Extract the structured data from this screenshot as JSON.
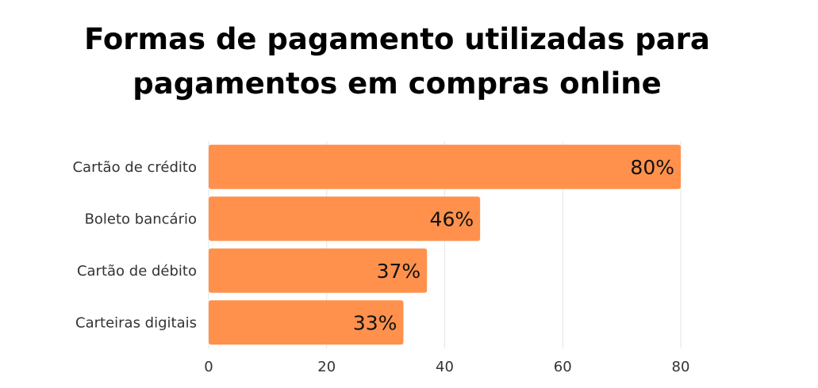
{
  "chart_data": {
    "type": "bar",
    "orientation": "horizontal",
    "title_lines": [
      "Formas de pagamento utilizadas para",
      "pagamentos em compras online"
    ],
    "categories": [
      "Cartão de crédito",
      "Boleto bancário",
      "Cartão de débito",
      "Carteiras digitais"
    ],
    "values": [
      80,
      46,
      37,
      33
    ],
    "data_labels": [
      "80%",
      "46%",
      "37%",
      "33%"
    ],
    "xticks": [
      "0",
      "20",
      "40",
      "60",
      "80"
    ],
    "xlim": [
      0,
      80
    ],
    "grid": true,
    "bar_color": "#FF914D"
  }
}
